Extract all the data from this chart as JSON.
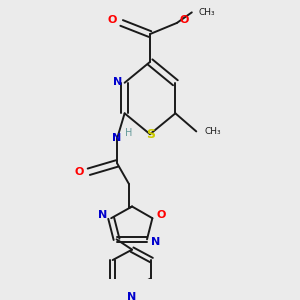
{
  "background_color": "#ebebeb",
  "colors": {
    "C": "#1a1a1a",
    "N": "#0000cc",
    "O": "#ff0000",
    "S": "#cccc00",
    "H": "#669999",
    "bond": "#1a1a1a"
  },
  "lw": 1.4,
  "fs": 8.0,
  "xlim": [
    0.0,
    1.0
  ],
  "ylim": [
    0.0,
    1.0
  ]
}
